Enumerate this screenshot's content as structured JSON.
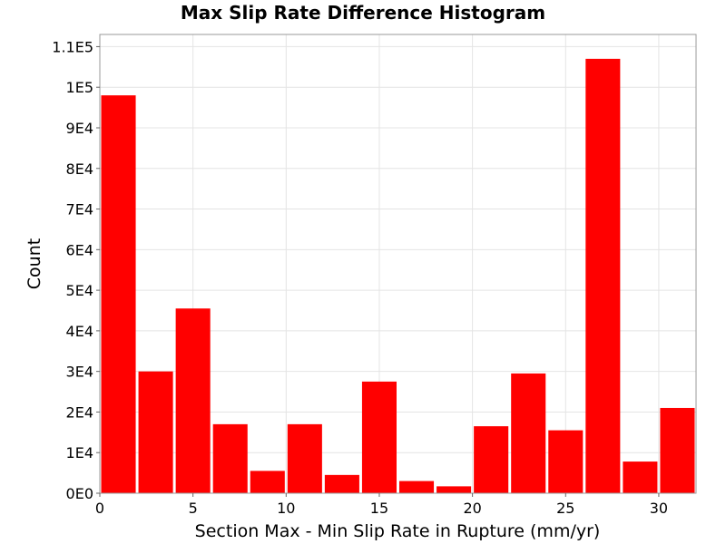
{
  "chart_data": {
    "type": "bar",
    "title": "Max Slip Rate Difference Histogram",
    "xlabel": "Section Max - Min Slip Rate in Rupture (mm/yr)",
    "ylabel": "Count",
    "xlim": [
      0,
      32
    ],
    "ylim": [
      0,
      113000
    ],
    "grid": true,
    "bar_color": "#ff0000",
    "bin_width": 2,
    "x_ticks": [
      0,
      5,
      10,
      15,
      20,
      25,
      30
    ],
    "x_tick_labels": [
      "0",
      "5",
      "10",
      "15",
      "20",
      "25",
      "30"
    ],
    "y_ticks": [
      0,
      10000,
      20000,
      30000,
      40000,
      50000,
      60000,
      70000,
      80000,
      90000,
      100000,
      110000
    ],
    "y_tick_labels": [
      "0E0",
      "1E4",
      "2E4",
      "3E4",
      "4E4",
      "5E4",
      "6E4",
      "7E4",
      "8E4",
      "9E4",
      "1E5",
      "1.1E5"
    ],
    "bin_centers": [
      1,
      3,
      5,
      7,
      9,
      11,
      13,
      15,
      17,
      19,
      21,
      23,
      25,
      27,
      29,
      31
    ],
    "values": [
      98000,
      30000,
      45500,
      17000,
      5500,
      17000,
      4500,
      27500,
      3000,
      1700,
      16500,
      29500,
      15500,
      107000,
      7800,
      21000
    ]
  }
}
